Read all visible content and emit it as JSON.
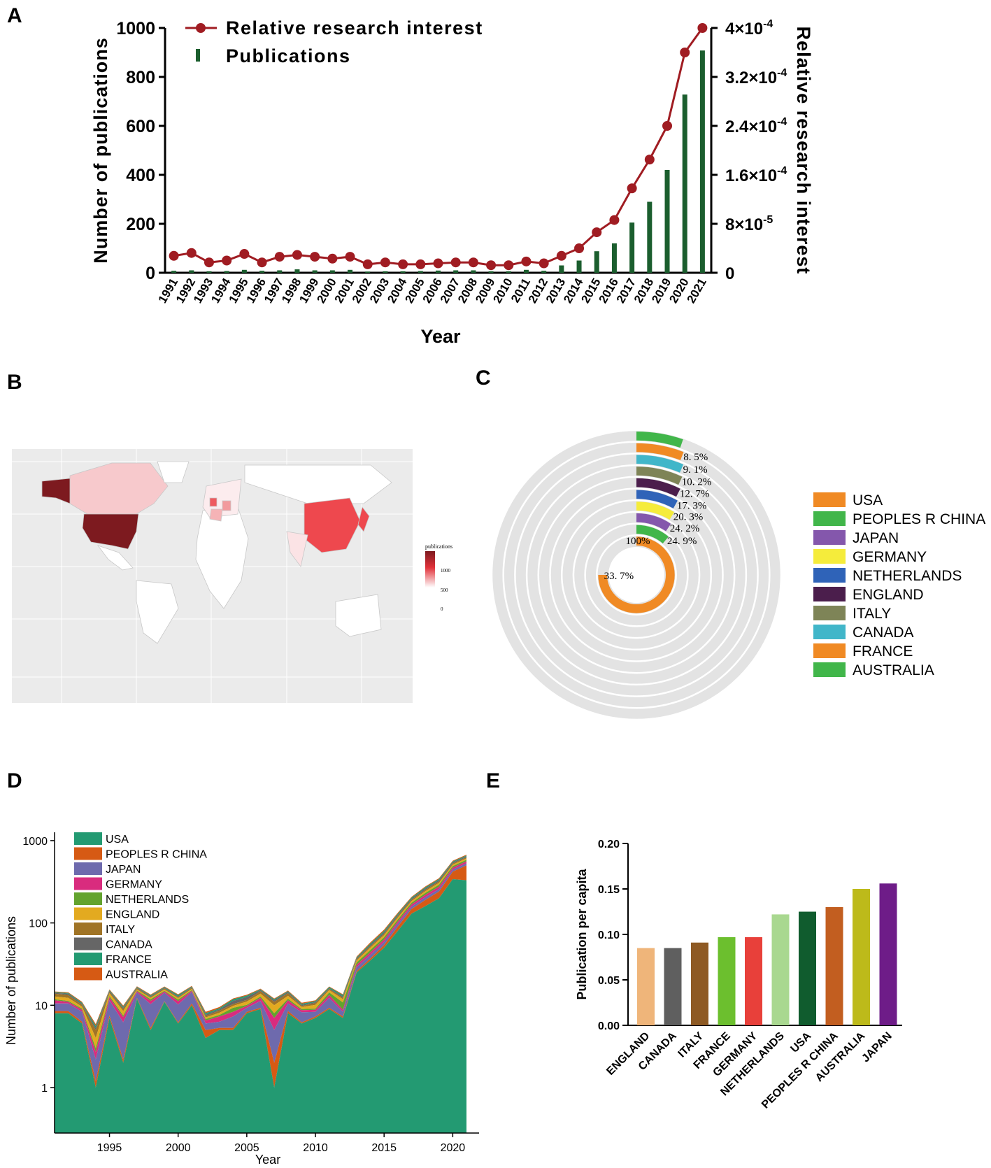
{
  "colors": {
    "pub_bar": "#1b5e2e",
    "interest_line": "#a01c22",
    "map_bg": "#ebebeb",
    "ring_bg": "#e3e3e3"
  },
  "panel_a": {
    "letter": "A",
    "chart_data": {
      "type": "bar+line",
      "xlabel": "Year",
      "ylabel_left": "Number of publications",
      "ylabel_right": "Relative research interest",
      "legend": {
        "line": "Relative research interest",
        "bars": "Publications"
      },
      "categories": [
        "1991",
        "1992",
        "1993",
        "1994",
        "1995",
        "1996",
        "1997",
        "1998",
        "1999",
        "2000",
        "2001",
        "2002",
        "2003",
        "2004",
        "2005",
        "2006",
        "2007",
        "2008",
        "2009",
        "2010",
        "2011",
        "2012",
        "2013",
        "2014",
        "2015",
        "2016",
        "2017",
        "2018",
        "2019",
        "2020",
        "2021"
      ],
      "publications": [
        8,
        10,
        6,
        7,
        12,
        8,
        10,
        14,
        10,
        10,
        12,
        5,
        6,
        6,
        7,
        9,
        10,
        10,
        6,
        6,
        12,
        8,
        30,
        50,
        88,
        120,
        205,
        290,
        420,
        728,
        908
      ],
      "relative_interest": [
        2.77e-05,
        3.23e-05,
        1.69e-05,
        2e-05,
        3.08e-05,
        1.69e-05,
        2.62e-05,
        2.92e-05,
        2.62e-05,
        2.31e-05,
        2.62e-05,
        1.38e-05,
        1.69e-05,
        1.38e-05,
        1.38e-05,
        1.54e-05,
        1.69e-05,
        1.69e-05,
        1.23e-05,
        1.23e-05,
        1.85e-05,
        1.54e-05,
        2.77e-05,
        4e-05,
        6.62e-05,
        8.62e-05,
        0.000138,
        0.000185,
        0.00024,
        0.00036,
        0.0004
      ],
      "ylim_left": [
        0,
        1000
      ],
      "left_ticks": [
        "0",
        "200",
        "400",
        "600",
        "800",
        "1000"
      ],
      "ylim_right": [
        0,
        0.0004
      ],
      "right_ticks": [
        "0",
        "8×10",
        "1.6×10",
        "2.4×10",
        "3.2×10",
        "4×10"
      ],
      "right_tick_exps": [
        "",
        "-5",
        "-4",
        "-4",
        "-4",
        "-4"
      ]
    }
  },
  "panel_b": {
    "letter": "B",
    "legend_title": "publications",
    "legend_ticks": [
      "1000",
      "500",
      "0"
    ],
    "countries_highlighted": [
      "USA",
      "PEOPLES R CHINA",
      "JAPAN",
      "GERMANY",
      "NETHERLANDS",
      "ENGLAND",
      "ITALY",
      "CANADA",
      "FRANCE",
      "AUSTRALIA"
    ]
  },
  "panel_c": {
    "letter": "C",
    "chart_data": {
      "type": "radial-bar",
      "rings": [
        {
          "country": "USA",
          "label": "33. 7%",
          "color": "#f08a24"
        },
        {
          "country": "PEOPLES R CHINA",
          "label": "24. 9%",
          "color": "#41b64a"
        },
        {
          "country": "JAPAN",
          "label": "24. 2%",
          "color": "#8457ac"
        },
        {
          "country": "GERMANY",
          "label": "20. 3%",
          "color": "#f5ec3b"
        },
        {
          "country": "NETHERLANDS",
          "label": "17. 3%",
          "color": "#2f63b8"
        },
        {
          "country": "ENGLAND",
          "label": "12. 7%",
          "color": "#4b1e4c"
        },
        {
          "country": "ITALY",
          "label": "10. 2%",
          "color": "#7e8457"
        },
        {
          "country": "CANADA",
          "label": "9. 1%",
          "color": "#41b6c9"
        },
        {
          "country": "FRANCE",
          "label": "8. 5%",
          "color": "#f08a24"
        },
        {
          "country": "AUSTRALIA",
          "label": "",
          "color": "#41b64a"
        }
      ],
      "center_label": "100%",
      "sweep_degrees": [
        270,
        40,
        34,
        31,
        29,
        27,
        25,
        23,
        21,
        19
      ]
    }
  },
  "panel_d": {
    "letter": "D",
    "chart_data": {
      "type": "area",
      "scale": "log",
      "xlabel": "Year",
      "ylabel": "Number of publications",
      "yticks": [
        "1",
        "10",
        "100",
        "1000"
      ],
      "xticks": [
        "1995",
        "2000",
        "2005",
        "2010",
        "2015",
        "2020"
      ],
      "x": [
        1991,
        1992,
        1993,
        1994,
        1995,
        1996,
        1997,
        1998,
        1999,
        2000,
        2001,
        2002,
        2003,
        2004,
        2005,
        2006,
        2007,
        2008,
        2009,
        2010,
        2011,
        2012,
        2013,
        2014,
        2015,
        2016,
        2017,
        2018,
        2019,
        2020,
        2021
      ],
      "series": [
        {
          "name": "USA",
          "color": "#239a72",
          "values": [
            8,
            8,
            6,
            1,
            7,
            2,
            12,
            5,
            11,
            6,
            10,
            4,
            5,
            5,
            8,
            9,
            1,
            8,
            6,
            7,
            9,
            7,
            25,
            35,
            50,
            80,
            130,
            160,
            200,
            340,
            330
          ]
        },
        {
          "name": "PEOPLES R CHINA",
          "color": "#d65a14",
          "values": [
            0.5,
            0.5,
            0.3,
            0.2,
            0.5,
            0.2,
            0.3,
            0.3,
            0.2,
            0.2,
            0.5,
            1,
            0.3,
            0.3,
            0.3,
            0.3,
            1,
            0.5,
            0.2,
            0.3,
            0.3,
            0.3,
            1,
            2,
            4,
            10,
            18,
            30,
            40,
            80,
            170
          ]
        },
        {
          "name": "JAPAN",
          "color": "#6e6aad",
          "values": [
            2,
            2,
            2,
            1,
            4,
            4,
            2,
            5,
            3,
            4,
            4,
            1,
            1,
            2,
            1,
            2,
            3,
            2,
            2,
            1,
            3,
            1,
            3,
            4,
            5,
            8,
            10,
            15,
            18,
            25,
            30
          ]
        },
        {
          "name": "GERMANY",
          "color": "#d92c7e",
          "values": [
            1,
            0.5,
            0.5,
            0.5,
            1,
            1,
            0.5,
            1,
            0.5,
            1,
            0.5,
            0.5,
            1,
            1,
            0.5,
            1,
            2,
            1,
            0.5,
            0.5,
            1,
            0.5,
            2,
            3,
            4,
            6,
            10,
            14,
            18,
            25,
            30
          ]
        },
        {
          "name": "NETHERLANDS",
          "color": "#63a32e",
          "values": [
            0.3,
            0.3,
            0.3,
            0.3,
            0.5,
            0.3,
            0.3,
            0.5,
            0.3,
            0.5,
            0.3,
            0.3,
            0.3,
            1,
            0.3,
            0.5,
            1,
            0.5,
            0.3,
            0.3,
            1,
            2,
            2,
            3,
            4,
            6,
            8,
            12,
            15,
            20,
            25
          ]
        },
        {
          "name": "ENGLAND",
          "color": "#e3aa20",
          "values": [
            1,
            1,
            0.5,
            1,
            1,
            1,
            0.5,
            0.5,
            0.5,
            0.5,
            0.5,
            0.3,
            0.5,
            0.5,
            1,
            1,
            2,
            1,
            0.5,
            1,
            1,
            1,
            2,
            3,
            4,
            6,
            8,
            12,
            15,
            20,
            22
          ]
        },
        {
          "name": "ITALY",
          "color": "#a07426",
          "values": [
            1,
            1,
            0.5,
            1,
            0.5,
            0.5,
            0.5,
            0.3,
            0.5,
            0.3,
            0.5,
            0.3,
            0.5,
            0.5,
            0.5,
            1,
            1,
            1,
            0.3,
            0.5,
            0.5,
            0.5,
            1,
            2,
            3,
            5,
            7,
            10,
            13,
            18,
            20
          ]
        },
        {
          "name": "CANADA",
          "color": "#666666",
          "values": [
            0.3,
            0.5,
            0.3,
            0.3,
            0.5,
            0.3,
            0.3,
            0.3,
            0.3,
            0.3,
            0.3,
            0.3,
            0.3,
            1,
            1,
            0.5,
            0.5,
            0.5,
            0.3,
            0.3,
            0.3,
            0.5,
            1,
            2,
            3,
            4,
            6,
            9,
            12,
            16,
            18
          ]
        },
        {
          "name": "FRANCE",
          "color": "#239a72",
          "values": [
            0.3,
            0.3,
            0.3,
            0.3,
            0.3,
            0.3,
            0.3,
            0.3,
            0.3,
            0.5,
            0.3,
            0.3,
            0.3,
            0.5,
            0.5,
            0.3,
            0.3,
            0.3,
            0.3,
            0.3,
            0.5,
            0.5,
            1,
            2,
            3,
            4,
            6,
            8,
            10,
            14,
            16
          ]
        },
        {
          "name": "AUSTRALIA",
          "color": "#d65a14",
          "values": [
            0.3,
            0.3,
            0.3,
            0.3,
            0.3,
            0.3,
            0.3,
            0.3,
            0.3,
            0.3,
            0.3,
            0.3,
            0.3,
            0.3,
            0.3,
            0.3,
            0.3,
            0.3,
            0.3,
            0.3,
            0.3,
            0.3,
            1,
            2,
            3,
            4,
            5,
            7,
            9,
            12,
            14
          ]
        }
      ]
    }
  },
  "panel_e": {
    "letter": "E",
    "chart_data": {
      "type": "bar",
      "ylabel": "Publication per capita",
      "ylim": [
        0,
        0.2
      ],
      "yticks": [
        "0.00",
        "0.05",
        "0.10",
        "0.15",
        "0.20"
      ],
      "categories": [
        "ENGLAND",
        "CANADA",
        "ITALY",
        "FRANCE",
        "GERMANY",
        "NETHERLANDS",
        "USA",
        "PEOPLES R CHINA",
        "AUSTRALIA",
        "JAPAN"
      ],
      "values": [
        0.085,
        0.085,
        0.091,
        0.097,
        0.097,
        0.122,
        0.125,
        0.13,
        0.15,
        0.156
      ],
      "colors": [
        "#efb57a",
        "#5f5f5f",
        "#8e5a24",
        "#6cbf2e",
        "#e8403a",
        "#a9d890",
        "#105c2e",
        "#c25e20",
        "#bdba1a",
        "#6e1c88"
      ]
    }
  }
}
